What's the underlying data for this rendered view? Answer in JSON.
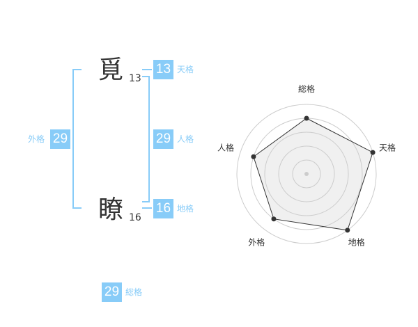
{
  "name": {
    "chars": [
      {
        "char": "覓",
        "strokes": "13"
      },
      {
        "char": "瞭",
        "strokes": "16"
      }
    ]
  },
  "fortunes": {
    "tenkaku": {
      "label": "天格",
      "value": "13"
    },
    "jinkaku": {
      "label": "人格",
      "value": "29"
    },
    "chikaku": {
      "label": "地格",
      "value": "16"
    },
    "gaikaku": {
      "label": "外格",
      "value": "29"
    },
    "soukaku": {
      "label": "総格",
      "value": "29"
    }
  },
  "colors": {
    "accent": "#88ccf8",
    "text": "#333333"
  },
  "chart_data": {
    "type": "radar",
    "axes": [
      "総格",
      "天格",
      "地格",
      "外格",
      "人格"
    ],
    "values": [
      4,
      5,
      5,
      4,
      4
    ],
    "range": [
      0,
      5
    ],
    "rings": 5
  }
}
